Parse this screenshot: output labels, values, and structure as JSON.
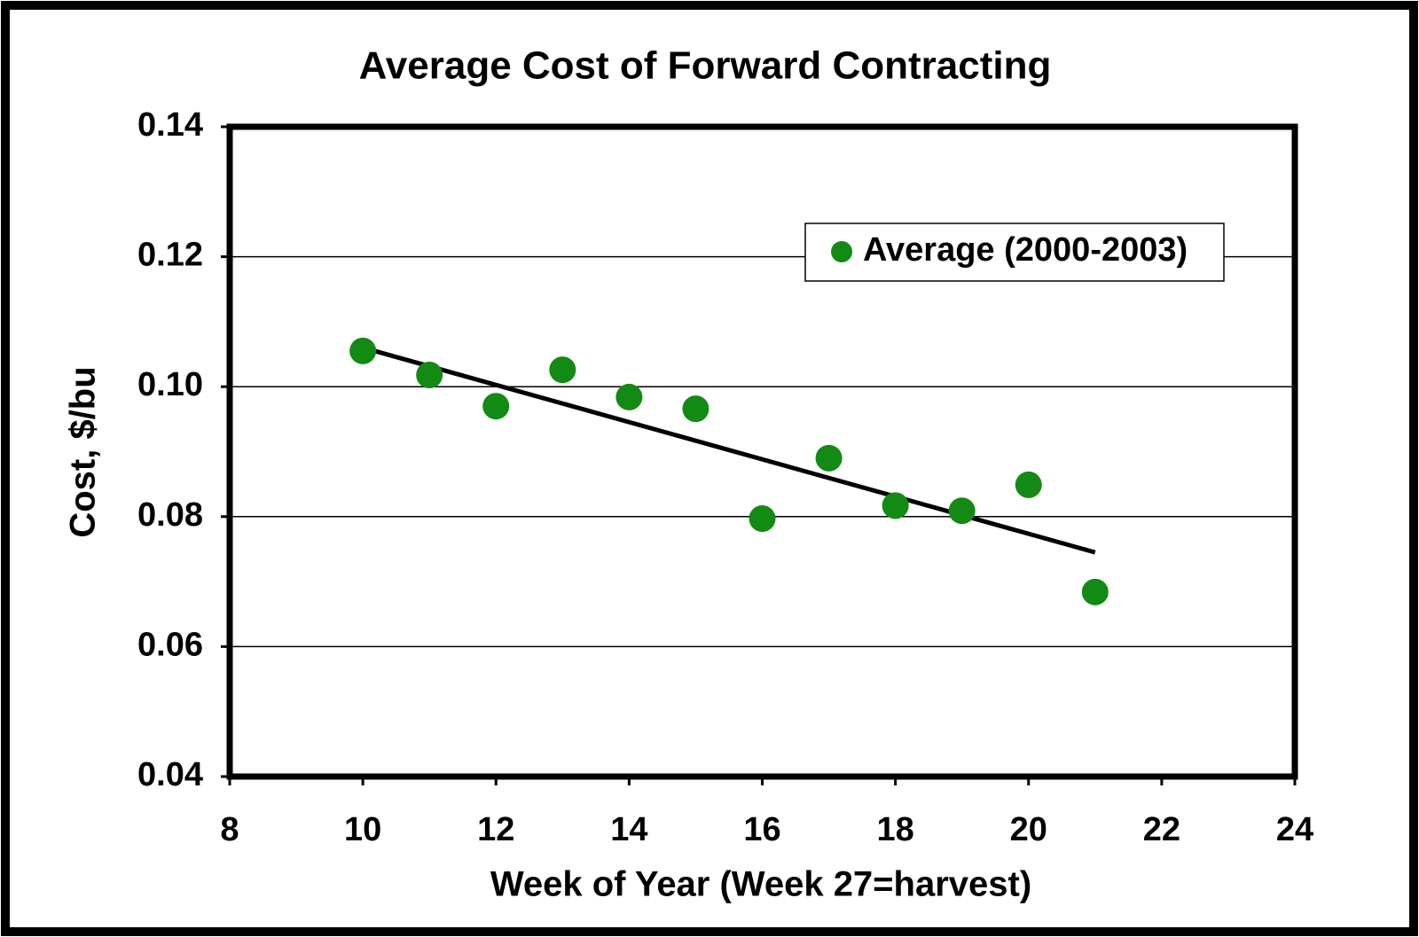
{
  "chart_data": {
    "type": "scatter",
    "title": "Average Cost of Forward Contracting",
    "x_label": "Week of Year (Week 27=harvest)",
    "y_label": "Cost, $/bu",
    "series": [
      {
        "name": "Average (2000-2003)",
        "color": "#138a13",
        "x": [
          10,
          11,
          12,
          13,
          14,
          15,
          16,
          17,
          18,
          19,
          20,
          21
        ],
        "values": [
          0.1055,
          0.1018,
          0.097,
          0.1026,
          0.0984,
          0.0966,
          0.0797,
          0.089,
          0.0817,
          0.0809,
          0.0849,
          0.0684
        ]
      }
    ],
    "trendline": {
      "color": "#000000",
      "x": [
        10,
        21
      ],
      "values": [
        0.106,
        0.0745
      ]
    },
    "xlim": [
      8,
      24
    ],
    "xticks": [
      8,
      10,
      12,
      14,
      16,
      18,
      20,
      22,
      24
    ],
    "ylim": [
      0.04,
      0.14
    ],
    "yticks": [
      0.04,
      0.06,
      0.08,
      {
        "value": 0.1,
        "label": "0.10"
      },
      0.12,
      0.14
    ],
    "grid": true,
    "legend": "upper right"
  }
}
